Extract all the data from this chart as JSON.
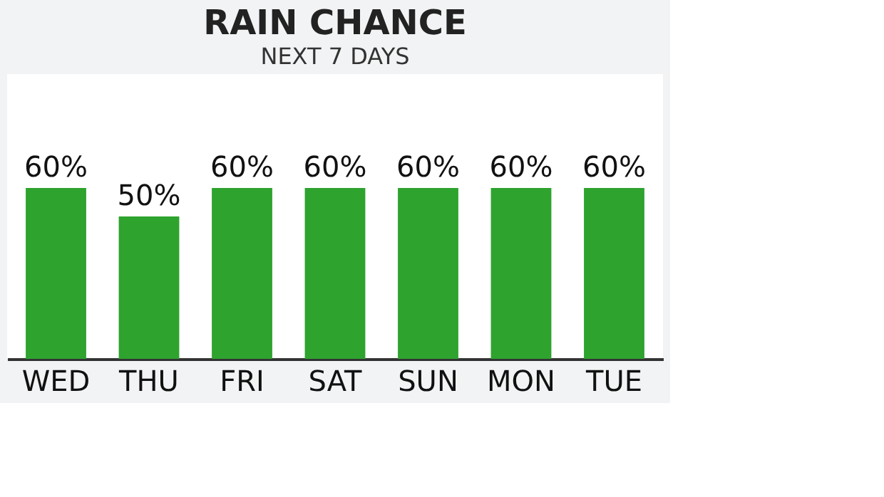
{
  "chart_data": {
    "type": "bar",
    "title": "RAIN CHANCE",
    "subtitle": "NEXT 7 DAYS",
    "categories": [
      "WED",
      "THU",
      "FRI",
      "SAT",
      "SUN",
      "MON",
      "TUE"
    ],
    "values": [
      60,
      50,
      60,
      60,
      60,
      60,
      60
    ],
    "value_labels": [
      "60%",
      "50%",
      "60%",
      "60%",
      "60%",
      "60%",
      "60%"
    ],
    "color": "#2ea32e",
    "ylim": [
      0,
      100
    ],
    "tick_labels": "x",
    "grid": false
  }
}
